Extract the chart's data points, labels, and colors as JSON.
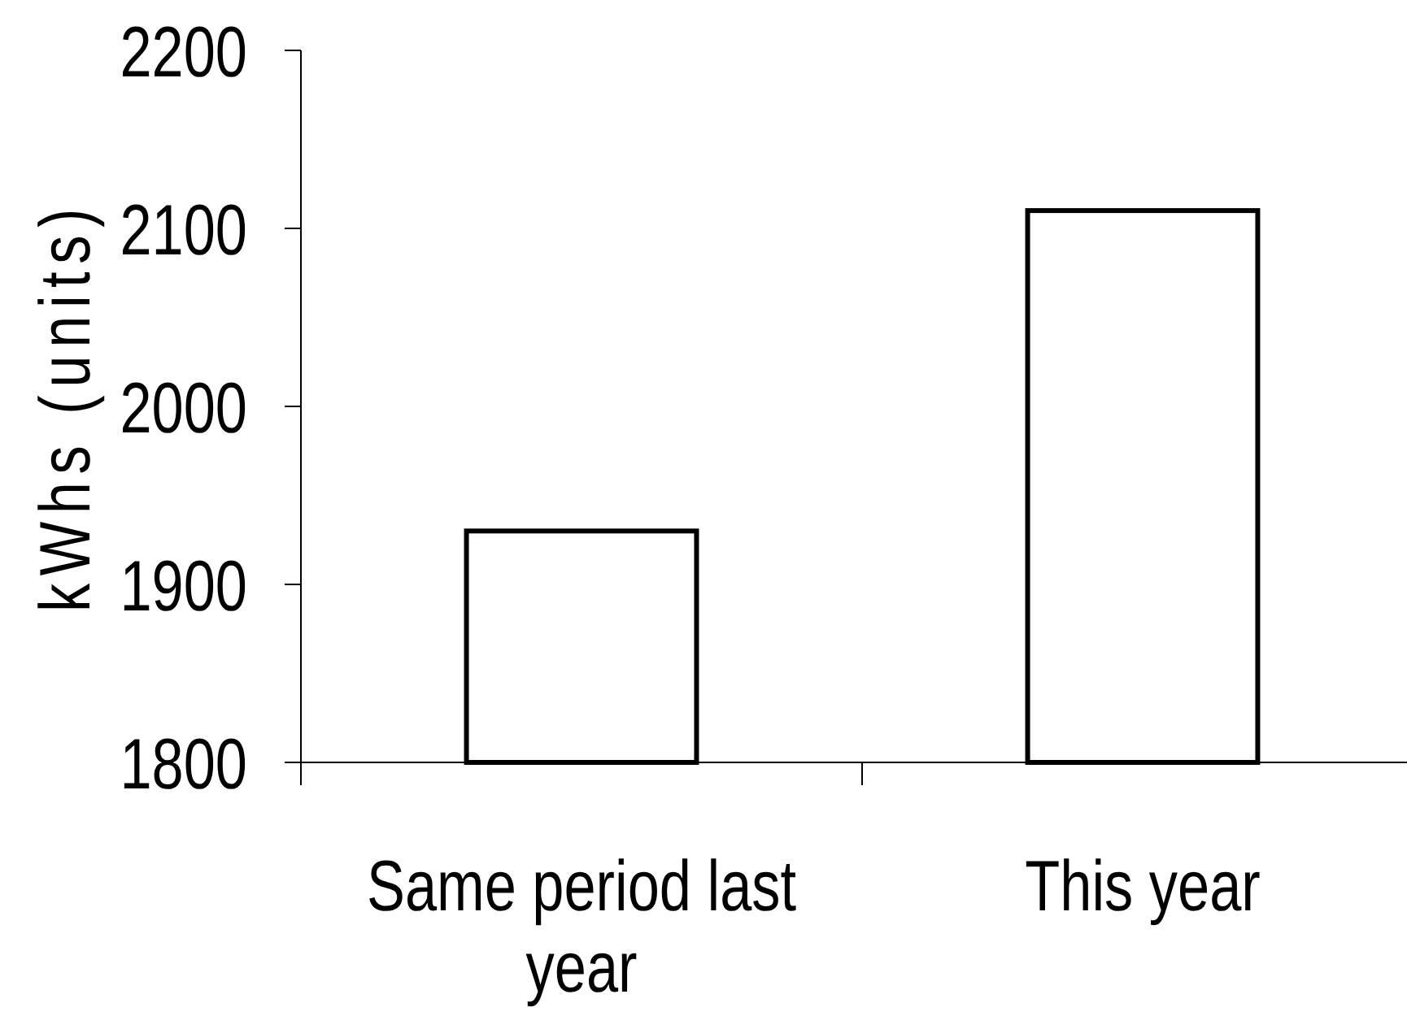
{
  "chart_data": {
    "type": "bar",
    "ylabel": "kWhs (units)",
    "categories": [
      "Same period last year",
      "This year"
    ],
    "values": [
      1930,
      2110
    ],
    "color": "#ffffff",
    "ylim": [
      1800,
      2200
    ],
    "yticks": [
      1800,
      1900,
      2000,
      2100,
      2200
    ]
  }
}
